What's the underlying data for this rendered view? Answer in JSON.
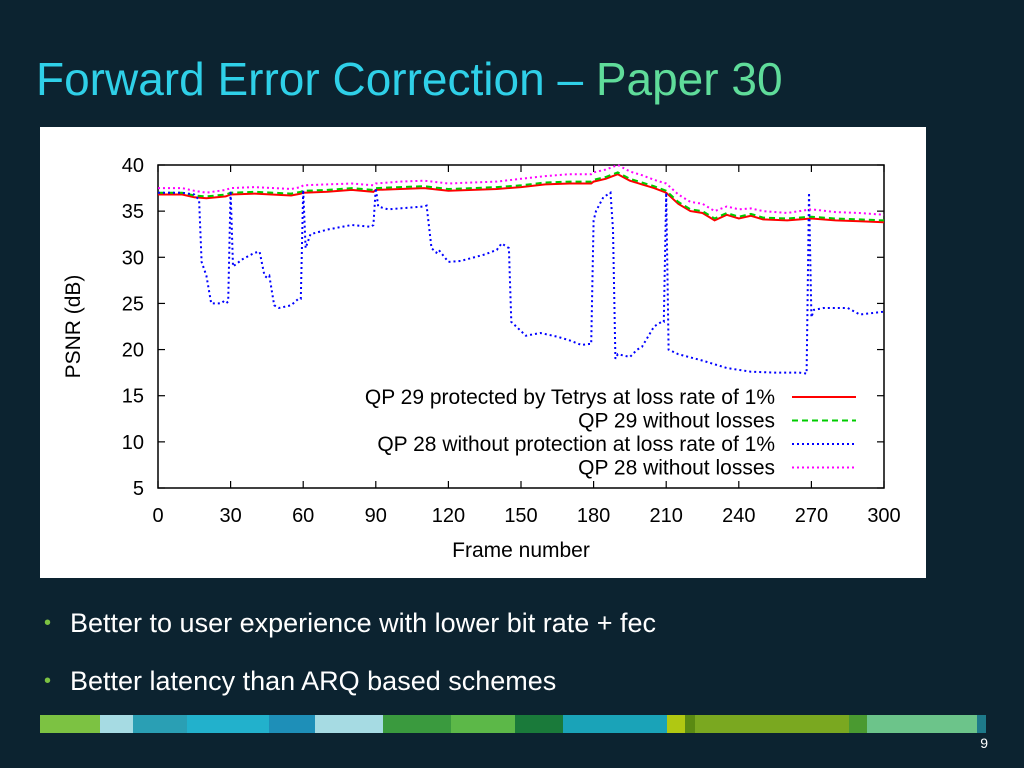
{
  "slide": {
    "title_part1": "Forward Error Correction – ",
    "title_part2": "Paper 30",
    "page_number": "9",
    "bullets": [
      "Better to user experience with lower bit rate + fec",
      "Better latency than ARQ based schemes"
    ],
    "colors": {
      "background": "#0c2330",
      "title_main": "#2fd0e8",
      "title_accent": "#5fdc9a",
      "bullet_dot": "#7cc242"
    },
    "color_bar": [
      "#7cc242",
      "#a6dbe3",
      "#2a9fb4",
      "#22b1cc",
      "#1e8fb8",
      "#a6dbe3",
      "#3a9a3e",
      "#5cb848",
      "#1a7a3a",
      "#1aa3b8",
      "#b0c812",
      "#5a8a12",
      "#7aa820",
      "#4a9a30",
      "#6cc48a",
      "#1e7a8a"
    ]
  },
  "chart_data": {
    "type": "line",
    "xlabel": "Frame number",
    "ylabel": "PSNR (dB)",
    "xlim": [
      0,
      300
    ],
    "ylim": [
      5,
      40
    ],
    "xticks": [
      0,
      30,
      60,
      90,
      120,
      150,
      180,
      210,
      240,
      270,
      300
    ],
    "yticks": [
      5,
      10,
      15,
      20,
      25,
      30,
      35,
      40
    ],
    "legend_position": "bottom-right",
    "series": [
      {
        "name": "QP 29 protected by Tetrys at loss rate of 1%",
        "color": "#ff0000",
        "style": "solid",
        "x": [
          0,
          10,
          15,
          20,
          28,
          30,
          40,
          55,
          59,
          60,
          70,
          80,
          89,
          90,
          100,
          110,
          120,
          130,
          140,
          150,
          160,
          170,
          179,
          180,
          185,
          190,
          195,
          200,
          205,
          210,
          215,
          220,
          225,
          230,
          235,
          240,
          245,
          250,
          260,
          270,
          280,
          290,
          300
        ],
        "y": [
          36.8,
          36.8,
          36.5,
          36.4,
          36.6,
          36.8,
          36.9,
          36.7,
          36.9,
          37.0,
          37.1,
          37.3,
          37.1,
          37.3,
          37.4,
          37.5,
          37.2,
          37.3,
          37.4,
          37.6,
          37.9,
          38.0,
          38.0,
          38.2,
          38.5,
          39.0,
          38.3,
          37.9,
          37.5,
          37.0,
          35.8,
          35.0,
          34.8,
          34.0,
          34.6,
          34.2,
          34.5,
          34.1,
          34.0,
          34.2,
          34.0,
          33.9,
          33.8
        ]
      },
      {
        "name": "QP 29 without losses",
        "color": "#00cc00",
        "style": "dashed",
        "x": [
          0,
          10,
          15,
          20,
          28,
          30,
          40,
          55,
          59,
          60,
          70,
          80,
          89,
          90,
          100,
          110,
          120,
          130,
          140,
          150,
          160,
          170,
          179,
          180,
          185,
          190,
          195,
          200,
          205,
          210,
          215,
          220,
          225,
          230,
          235,
          240,
          245,
          250,
          260,
          270,
          280,
          290,
          300
        ],
        "y": [
          37.0,
          37.0,
          36.7,
          36.6,
          36.8,
          37.0,
          37.1,
          36.9,
          37.1,
          37.2,
          37.3,
          37.5,
          37.3,
          37.5,
          37.6,
          37.7,
          37.4,
          37.5,
          37.6,
          37.8,
          38.1,
          38.2,
          38.2,
          38.4,
          38.7,
          39.2,
          38.5,
          38.1,
          37.7,
          37.2,
          36.0,
          35.2,
          35.0,
          34.2,
          34.8,
          34.4,
          34.7,
          34.3,
          34.2,
          34.4,
          34.2,
          34.1,
          34.0
        ]
      },
      {
        "name": "QP 28 without protection at loss rate of 1%",
        "color": "#0000ff",
        "style": "dotted",
        "x": [
          0,
          10,
          15,
          17,
          18,
          20,
          22,
          26,
          27,
          28,
          29,
          30,
          31,
          35,
          40,
          42,
          44,
          45,
          46,
          48,
          50,
          55,
          58,
          59,
          60,
          61,
          63,
          70,
          80,
          88,
          89,
          90,
          91,
          95,
          110,
          111,
          113,
          115,
          116,
          120,
          125,
          135,
          140,
          142,
          145,
          146,
          148,
          152,
          158,
          165,
          170,
          175,
          178,
          179,
          180,
          181,
          184,
          187,
          188,
          189,
          190,
          195,
          198,
          200,
          205,
          208,
          209,
          210,
          211,
          215,
          225,
          235,
          245,
          255,
          265,
          268,
          269,
          270,
          271,
          275,
          285,
          290,
          300
        ],
        "y": [
          37.0,
          37.0,
          36.8,
          36.2,
          29.5,
          28.0,
          25.0,
          25.0,
          25.2,
          25.0,
          25.2,
          37.2,
          29.0,
          29.8,
          30.5,
          30.6,
          28.0,
          27.8,
          28.0,
          24.8,
          24.5,
          24.8,
          25.5,
          25.5,
          37.3,
          31.0,
          32.5,
          33.0,
          33.5,
          33.3,
          33.5,
          37.5,
          35.5,
          35.2,
          35.5,
          35.6,
          31.0,
          30.5,
          30.8,
          29.5,
          29.6,
          30.3,
          30.8,
          31.5,
          31.0,
          23.0,
          22.5,
          21.5,
          21.8,
          21.4,
          21.0,
          20.5,
          20.6,
          20.6,
          34.0,
          35.0,
          36.5,
          37.0,
          33.0,
          19.0,
          19.5,
          19.2,
          20.0,
          20.3,
          22.5,
          23.0,
          23.0,
          37.0,
          20.0,
          19.5,
          18.8,
          18.0,
          17.6,
          17.5,
          17.5,
          17.4,
          37.0,
          23.5,
          24.3,
          24.5,
          24.5,
          23.8,
          24.1
        ]
      },
      {
        "name": "QP 28 without losses",
        "color": "#ff00ff",
        "style": "dotted",
        "x": [
          0,
          10,
          15,
          20,
          28,
          30,
          40,
          55,
          59,
          60,
          70,
          80,
          89,
          90,
          100,
          110,
          120,
          130,
          140,
          150,
          160,
          170,
          179,
          180,
          185,
          190,
          195,
          200,
          205,
          210,
          215,
          220,
          225,
          230,
          235,
          240,
          245,
          250,
          260,
          270,
          280,
          290,
          300
        ],
        "y": [
          37.5,
          37.5,
          37.2,
          37.0,
          37.3,
          37.5,
          37.6,
          37.4,
          37.6,
          37.8,
          37.9,
          38.0,
          37.8,
          38.0,
          38.2,
          38.3,
          38.0,
          38.1,
          38.2,
          38.5,
          38.8,
          39.0,
          39.0,
          39.2,
          39.5,
          40.0,
          39.3,
          38.9,
          38.4,
          38.0,
          36.8,
          36.0,
          35.8,
          35.0,
          35.5,
          35.2,
          35.3,
          35.0,
          34.8,
          35.2,
          34.9,
          34.8,
          34.6
        ]
      }
    ]
  }
}
